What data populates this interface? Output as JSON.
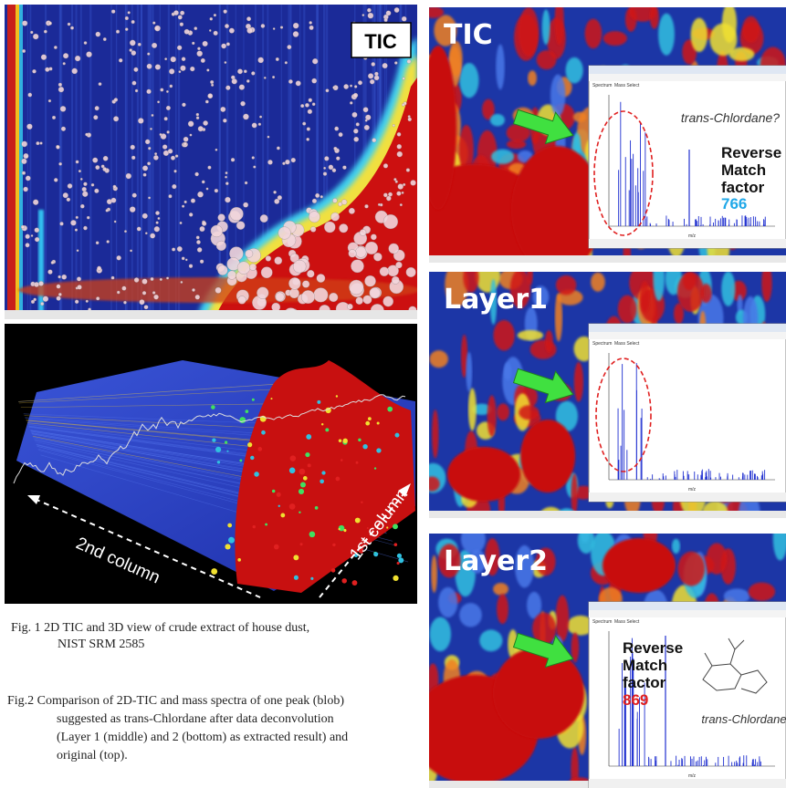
{
  "panels": {
    "tic_2d": {
      "label": "TIC"
    },
    "view_3d": {
      "axis_2nd": "2nd column",
      "axis_1st": "1st column"
    },
    "compare": [
      {
        "label": "TIC",
        "compound": "trans-Chlordane?",
        "match_label": [
          "Reverse",
          "Match",
          "factor"
        ],
        "match_value": 766
      },
      {
        "label": "Layer1"
      },
      {
        "label": "Layer2",
        "compound": "trans-Chlordane",
        "match_label": [
          "Reverse",
          "Match",
          "factor"
        ],
        "match_value": 869
      }
    ],
    "spectrum_window": {
      "tabs": [
        "Spectrum",
        "Mass Select"
      ],
      "x_axis": "m/z"
    }
  },
  "captions": {
    "fig1": [
      "Fig. 1  2D TIC and 3D view of crude extract of house dust,",
      "NIST SRM 2585"
    ],
    "fig2": [
      "Fig.2   Comparison of 2D-TIC and mass spectra of one peak (blob)",
      "suggested as trans-Chlordane after data deconvolution",
      "(Layer 1 (middle) and 2 (bottom) as extracted result) and",
      "original  (top)."
    ]
  }
}
